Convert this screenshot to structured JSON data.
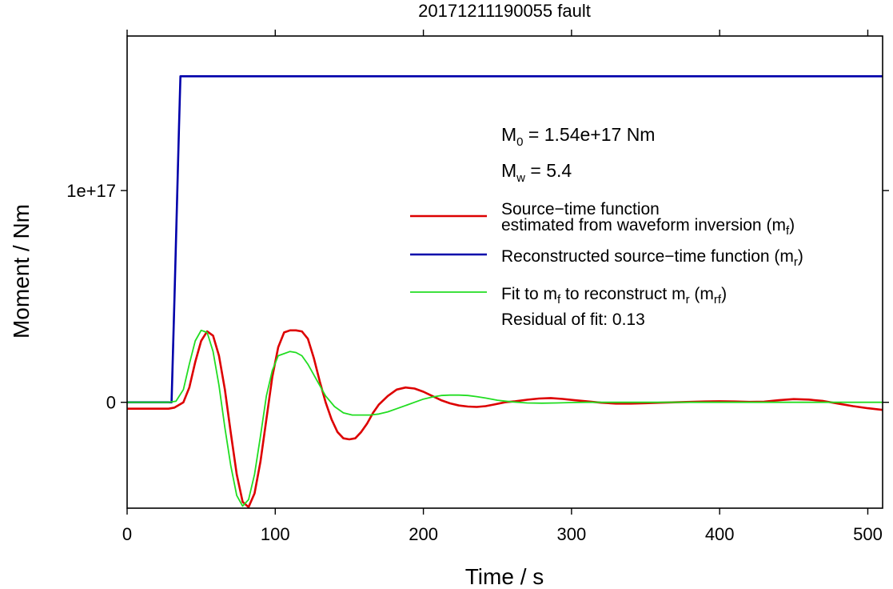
{
  "chart_data": {
    "type": "line",
    "title": "20171211190055 fault",
    "xlabel": "Time / s",
    "ylabel": "Moment / Nm",
    "xlim": [
      0,
      510
    ],
    "ylim": [
      -5e+16,
      1.73e+17
    ],
    "x_ticks": [
      0,
      100,
      200,
      300,
      400,
      500
    ],
    "x_tick_labels": [
      "0",
      "100",
      "200",
      "300",
      "400",
      "500"
    ],
    "y_ticks": [
      0,
      1e+17
    ],
    "y_tick_labels": [
      "0",
      "1e+17"
    ],
    "grid": false,
    "legend_placement": "right, upper-middle",
    "annotations": {
      "m0": {
        "main": "M",
        "sub": "0",
        "rest": " = 1.54e+17 Nm"
      },
      "mw": {
        "main": "M",
        "sub": "w",
        "rest": " = 5.4"
      },
      "residual": "Residual of fit: 0.13"
    },
    "legend": [
      {
        "color": "#dd0000",
        "width": 2.6,
        "lines": [
          {
            "text": "Source−time function"
          },
          {
            "text": "estimated from waveform inversion (m",
            "sub": "f",
            "tail": ")"
          }
        ]
      },
      {
        "color": "#0000aa",
        "width": 2.6,
        "lines": [
          {
            "text": "Reconstructed source−time function (m",
            "sub": "r",
            "tail": ")"
          }
        ]
      },
      {
        "color": "#22dd22",
        "width": 1.8,
        "lines": [
          {
            "parts": [
              {
                "t": "Fit to m"
              },
              {
                "s": "f"
              },
              {
                "t": " to reconstruct m"
              },
              {
                "s": "r"
              },
              {
                "t": " (m"
              },
              {
                "s": "rf"
              },
              {
                "t": ")"
              }
            ]
          }
        ]
      }
    ],
    "series": [
      {
        "name": "Source−time function estimated from waveform inversion (mf)",
        "color": "#dd0000",
        "x": [
          0,
          10,
          20,
          28,
          32,
          38,
          42,
          46,
          50,
          54,
          58,
          62,
          66,
          70,
          74,
          78,
          82,
          86,
          90,
          94,
          98,
          102,
          106,
          110,
          114,
          118,
          122,
          126,
          130,
          134,
          138,
          142,
          146,
          150,
          154,
          158,
          162,
          166,
          170,
          176,
          182,
          188,
          194,
          200,
          206,
          212,
          218,
          224,
          230,
          236,
          242,
          248,
          255,
          262,
          270,
          278,
          286,
          294,
          302,
          310,
          320,
          330,
          340,
          350,
          360,
          370,
          380,
          390,
          400,
          410,
          420,
          430,
          440,
          450,
          460,
          470,
          480,
          490,
          500,
          510
        ],
        "y": [
          -3000000000000000.0,
          -3000000000000000.0,
          -3000000000000000.0,
          -3000000000000000.0,
          -2500000000000000.0,
          0,
          7000000000000000.0,
          1.9e+16,
          2.9e+16,
          3.35e+16,
          3.15e+16,
          2.2e+16,
          6000000000000000.0,
          -1.45e+16,
          -3.4e+16,
          -4.7e+16,
          -4.95e+16,
          -4.3e+16,
          -2.8e+16,
          -8000000000000000.0,
          1.2e+16,
          2.6e+16,
          3.3e+16,
          3.4e+16,
          3.4e+16,
          3.35e+16,
          3e+16,
          2.1e+16,
          1e+16,
          0,
          -8000000000000000.0,
          -1.4e+16,
          -1.7e+16,
          -1.75e+16,
          -1.7e+16,
          -1.4e+16,
          -1e+16,
          -5000000000000000.0,
          -1000000000000000.0,
          3000000000000000.0,
          6000000000000000.0,
          7000000000000000.0,
          6500000000000000.0,
          5000000000000000.0,
          3000000000000000.0,
          1000000000000000.0,
          -500000000000000.0,
          -1500000000000000.0,
          -2000000000000000.0,
          -2200000000000000.0,
          -1800000000000000.0,
          -1000000000000000.0,
          0,
          500000000000000.0,
          1200000000000000.0,
          1800000000000000.0,
          2000000000000000.0,
          1600000000000000.0,
          1000000000000000.0,
          500000000000000.0,
          -200000000000000.0,
          -600000000000000.0,
          -600000000000000.0,
          -400000000000000.0,
          -200000000000000.0,
          0,
          200000000000000.0,
          400000000000000.0,
          500000000000000.0,
          400000000000000.0,
          200000000000000.0,
          300000000000000.0,
          1000000000000000.0,
          1500000000000000.0,
          1300000000000000.0,
          600000000000000.0,
          -600000000000000.0,
          -1800000000000000.0,
          -2800000000000000.0,
          -3600000000000000.0
        ]
      },
      {
        "name": "Reconstructed source−time function (mr)",
        "color": "#0000aa",
        "x": [
          0,
          30,
          32,
          35,
          36,
          510
        ],
        "y": [
          0,
          0,
          5e+16,
          1.3e+17,
          1.54e+17,
          1.54e+17
        ]
      },
      {
        "name": "Fit to mf to reconstruct mr (mrf)",
        "color": "#22dd22",
        "x": [
          0,
          28,
          33,
          38,
          42,
          46,
          50,
          54,
          58,
          62,
          66,
          70,
          74,
          78,
          82,
          86,
          90,
          94,
          98,
          102,
          106,
          110,
          114,
          118,
          122,
          126,
          130,
          134,
          140,
          146,
          152,
          158,
          164,
          170,
          176,
          182,
          188,
          194,
          200,
          206,
          212,
          218,
          224,
          230,
          236,
          242,
          250,
          260,
          270,
          280,
          290,
          300,
          310,
          320,
          330,
          340,
          350,
          360,
          380,
          400,
          420,
          440,
          460,
          480,
          500,
          510
        ],
        "y": [
          0,
          0,
          500000000000000.0,
          6000000000000000.0,
          1.8e+16,
          2.9e+16,
          3.4e+16,
          3.3e+16,
          2.4e+16,
          8000000000000000.0,
          -1.2e+16,
          -3e+16,
          -4.4e+16,
          -4.9e+16,
          -4.6e+16,
          -3.4e+16,
          -1.6e+16,
          3000000000000000.0,
          1.5e+16,
          2.2e+16,
          2.3e+16,
          2.4e+16,
          2.35e+16,
          2.2e+16,
          1.8e+16,
          1.3e+16,
          8000000000000000.0,
          3000000000000000.0,
          -2000000000000000.0,
          -5000000000000000.0,
          -6000000000000000.0,
          -6000000000000000.0,
          -6000000000000000.0,
          -5500000000000000.0,
          -4500000000000000.0,
          -3000000000000000.0,
          -1500000000000000.0,
          0,
          1500000000000000.0,
          2500000000000000.0,
          3200000000000000.0,
          3400000000000000.0,
          3400000000000000.0,
          3200000000000000.0,
          2700000000000000.0,
          2000000000000000.0,
          1000000000000000.0,
          200000000000000.0,
          -300000000000000.0,
          -400000000000000.0,
          -300000000000000.0,
          -100000000000000.0,
          0,
          0,
          0,
          0,
          0,
          0,
          0,
          0,
          0,
          0,
          0,
          0,
          0,
          0
        ]
      }
    ]
  }
}
